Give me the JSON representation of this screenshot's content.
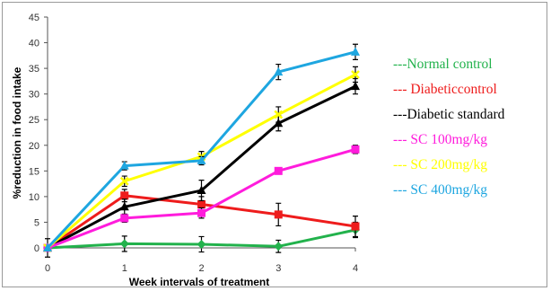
{
  "chart_data": {
    "type": "line",
    "xlabel": "Week intervals of treatment",
    "ylabel": "%reduction in food intake",
    "x": [
      0,
      1,
      2,
      3,
      4
    ],
    "xlim": [
      0,
      4
    ],
    "ylim": [
      0,
      45
    ],
    "yticks": [
      0,
      5,
      10,
      15,
      20,
      25,
      30,
      35,
      40,
      45
    ],
    "grid": false,
    "legend_placement": "right",
    "series": [
      {
        "name": "---Normal control",
        "color": "#22b24c",
        "marker": "diamond",
        "values": [
          0,
          0.8,
          0.7,
          0.3,
          3.5
        ],
        "errors": [
          0,
          1.5,
          1.5,
          1.2,
          1.5
        ]
      },
      {
        "name": "--- Diabeticcontrol",
        "color": "#ee1c1c",
        "marker": "square",
        "values": [
          0,
          10.2,
          8.5,
          6.5,
          4.2
        ],
        "errors": [
          0,
          1.2,
          1.5,
          2.2,
          2.0
        ]
      },
      {
        "name": "---Diabetic standard",
        "color": "#000000",
        "marker": "triangle",
        "values": [
          0,
          8.0,
          11.2,
          24.3,
          31.5
        ],
        "errors": [
          1.8,
          1.5,
          2.0,
          1.5,
          1.5
        ]
      },
      {
        "name": "--- SC 100mg/kg",
        "color": "#ff1cdc",
        "marker": "square",
        "values": [
          0,
          5.8,
          6.8,
          15.0,
          19.2
        ],
        "errors": [
          0,
          0.8,
          1.0,
          0.6,
          0.8
        ]
      },
      {
        "name": "--- SC 200mg/kg",
        "color": "#ffff00",
        "marker": "x",
        "values": [
          0,
          13.0,
          17.8,
          26.0,
          33.8
        ],
        "errors": [
          0,
          1.0,
          1.0,
          1.5,
          1.5
        ]
      },
      {
        "name": "--- SC 400mg/kg",
        "color": "#1ea6e0",
        "marker": "triangle",
        "values": [
          0,
          16.0,
          17.0,
          34.3,
          38.2
        ],
        "errors": [
          0,
          0.8,
          0.8,
          1.5,
          1.5
        ]
      }
    ]
  }
}
